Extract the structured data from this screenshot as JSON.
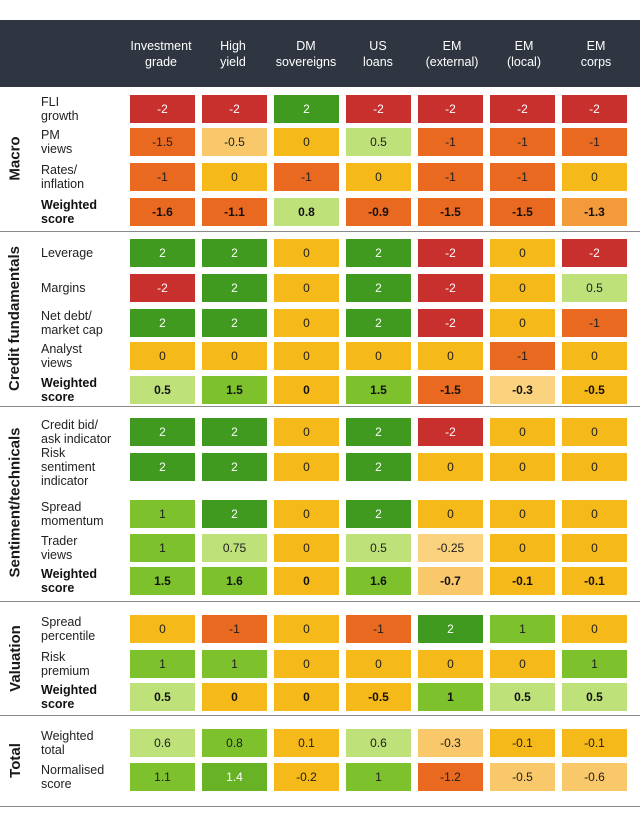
{
  "columns": [
    "Investment\ngrade",
    "High\nyield",
    "DM\nsovereigns",
    "US\nloans",
    "EM\n(external)",
    "EM\n(local)",
    "EM\ncorps"
  ],
  "colors": {
    "-2": "#c8302e",
    "-1.5": "#e8691f",
    "-1": "#e8691f",
    "-0.5": "#f9c86a",
    "-0.25": "#fbd27d",
    "0": "#f6b91a",
    "0.5": "#bfe17a",
    "0.75": "#bfe17a",
    "1": "#7dc12c",
    "1.5": "#68b225",
    "2": "#3f9a1f",
    "ws_-1.6": "#e8691f",
    "ws_-1.1": "#e8691f",
    "ws_0.8": "#bfe17a",
    "ws_-0.9": "#e8691f",
    "ws_-1.5": "#e8691f",
    "ws_-1.3": "#f39a3a",
    "ws_-0.3": "#fbd27d",
    "ws_-0.7": "#f9c86a",
    "ws_-0.1": "#f6b91a",
    "ws_0": "#f6b91a",
    "ws_0.5": "#bfe17a",
    "ws_1": "#7dc12c",
    "ws_1.5": "#7dc12c",
    "ws_1.6": "#7dc12c",
    "ws_-0.5": "#f6b91a",
    "tot_0.6": "#bfe17a",
    "tot_0.8": "#7dc12c",
    "tot_0.1": "#f6b91a",
    "tot_-0.3": "#f9c86a",
    "tot_-0.1": "#f6b91a",
    "tot_1.1": "#7dc12c",
    "tot_1.4": "#68b225",
    "tot_-0.2": "#f6b91a",
    "tot_1": "#7dc12c",
    "tot_-1.2": "#e8691f",
    "tot_-0.5": "#f9c86a",
    "tot_-0.6": "#f9c86a"
  },
  "sections": [
    {
      "name": "Macro",
      "rows": [
        {
          "label": "FLI\ngrowth",
          "bold": false,
          "values": [
            "-2",
            "-2",
            "2",
            "-2",
            "-2",
            "-2",
            "-2"
          ]
        },
        {
          "label": "PM\nviews",
          "bold": false,
          "values": [
            "-1.5",
            "-0.5",
            "0",
            "0.5",
            "-1",
            "-1",
            "-1"
          ]
        },
        {
          "label": "Rates/\ninflation",
          "bold": false,
          "values": [
            "-1",
            "0",
            "-1",
            "0",
            "-1",
            "-1",
            "0"
          ]
        },
        {
          "label": "Weighted\nscore",
          "bold": true,
          "prefix": "ws_",
          "values": [
            "-1.6",
            "-1.1",
            "0.8",
            "-0.9",
            "-1.5",
            "-1.5",
            "-1.3"
          ]
        }
      ]
    },
    {
      "name": "Credit fundamentals",
      "rows": [
        {
          "label": "Leverage",
          "bold": false,
          "values": [
            "2",
            "2",
            "0",
            "2",
            "-2",
            "0",
            "-2"
          ]
        },
        {
          "label": "Margins",
          "bold": false,
          "values": [
            "-2",
            "2",
            "0",
            "2",
            "-2",
            "0",
            "0.5"
          ]
        },
        {
          "label": "Net debt/\nmarket cap",
          "bold": false,
          "values": [
            "2",
            "2",
            "0",
            "2",
            "-2",
            "0",
            "-1"
          ]
        },
        {
          "label": "Analyst\nviews",
          "bold": false,
          "values": [
            "0",
            "0",
            "0",
            "0",
            "0",
            "-1",
            "0"
          ]
        },
        {
          "label": "Weighted\nscore",
          "bold": true,
          "prefix": "ws_",
          "values": [
            "0.5",
            "1.5",
            "0",
            "1.5",
            "-1.5",
            "-0.3",
            "-0.5"
          ]
        }
      ]
    },
    {
      "name": "Sentiment/technicals",
      "rows": [
        {
          "label": "Credit bid/\nask indicator",
          "bold": false,
          "values": [
            "2",
            "2",
            "0",
            "2",
            "-2",
            "0",
            "0"
          ]
        },
        {
          "label": "Risk\nsentiment\nindicator",
          "bold": false,
          "values": [
            "2",
            "2",
            "0",
            "2",
            "0",
            "0",
            "0"
          ]
        },
        {
          "label": "Spread\nmomentum",
          "bold": false,
          "values": [
            "1",
            "2",
            "0",
            "2",
            "0",
            "0",
            "0"
          ]
        },
        {
          "label": "Trader\nviews",
          "bold": false,
          "values": [
            "1",
            "0.75",
            "0",
            "0.5",
            "-0.25",
            "0",
            "0"
          ]
        },
        {
          "label": "Weighted\nscore",
          "bold": true,
          "prefix": "ws_",
          "values": [
            "1.5",
            "1.6",
            "0",
            "1.6",
            "-0.7",
            "-0.1",
            "-0.1"
          ]
        }
      ]
    },
    {
      "name": "Valuation",
      "rows": [
        {
          "label": "Spread\npercentile",
          "bold": false,
          "values": [
            "0",
            "-1",
            "0",
            "-1",
            "2",
            "1",
            "0"
          ]
        },
        {
          "label": "Risk\npremium",
          "bold": false,
          "values": [
            "1",
            "1",
            "0",
            "0",
            "0",
            "0",
            "1"
          ]
        },
        {
          "label": "Weighted\nscore",
          "bold": true,
          "prefix": "ws_",
          "values": [
            "0.5",
            "0",
            "0",
            "-0.5",
            "1",
            "0.5",
            "0.5"
          ]
        }
      ]
    },
    {
      "name": "Total",
      "rows": [
        {
          "label": "Weighted\ntotal",
          "bold": false,
          "prefix": "tot_",
          "values": [
            "0.6",
            "0.8",
            "0.1",
            "0.6",
            "-0.3",
            "-0.1",
            "-0.1"
          ]
        },
        {
          "label": "Normalised\nscore",
          "bold": false,
          "prefix": "tot_",
          "values": [
            "1.1",
            "1.4",
            "-0.2",
            "1",
            "-1.2",
            "-0.5",
            "-0.6"
          ]
        }
      ]
    }
  ]
}
